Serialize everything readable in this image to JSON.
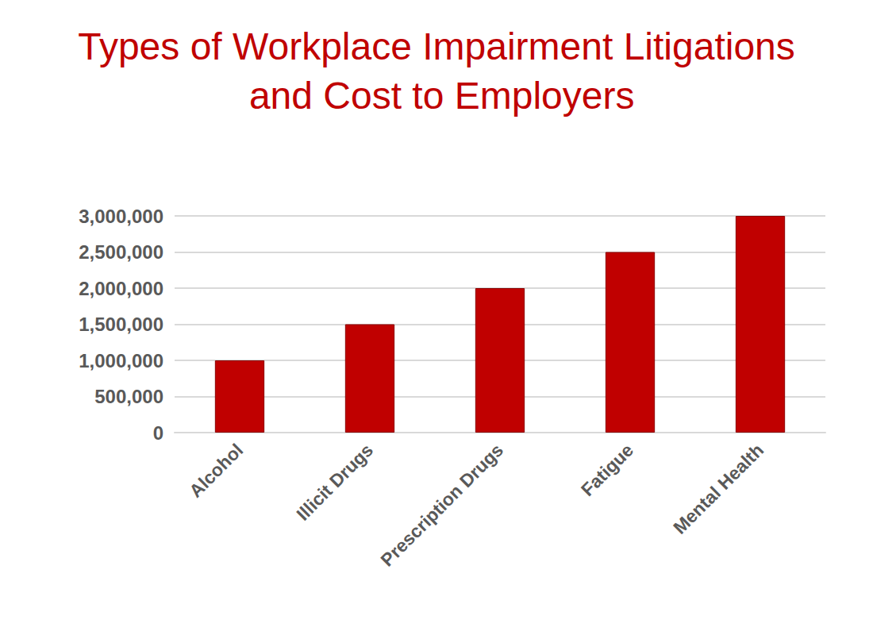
{
  "chart_data": {
    "type": "bar",
    "title": "Types of Workplace Impairment Litigations and Cost to Employers",
    "categories": [
      "Alcohol",
      "Illicit Drugs",
      "Prescription Drugs",
      "Fatigue",
      "Mental Health"
    ],
    "values": [
      1000000,
      1500000,
      2000000,
      2500000,
      3000000
    ],
    "color": "#c00000",
    "ylim": [
      0,
      3000000
    ],
    "yticks": [
      0,
      {
        "value": 500000,
        "label": "500,000"
      },
      {
        "value": 1000000,
        "label": "1,000,000"
      },
      {
        "value": 1500000,
        "label": "1,500,000"
      },
      {
        "value": 2000000,
        "label": "2,000,000"
      },
      {
        "value": 2500000,
        "label": "2,500,000"
      },
      {
        "value": 3000000,
        "label": "3,000,000"
      }
    ],
    "grid": true
  }
}
